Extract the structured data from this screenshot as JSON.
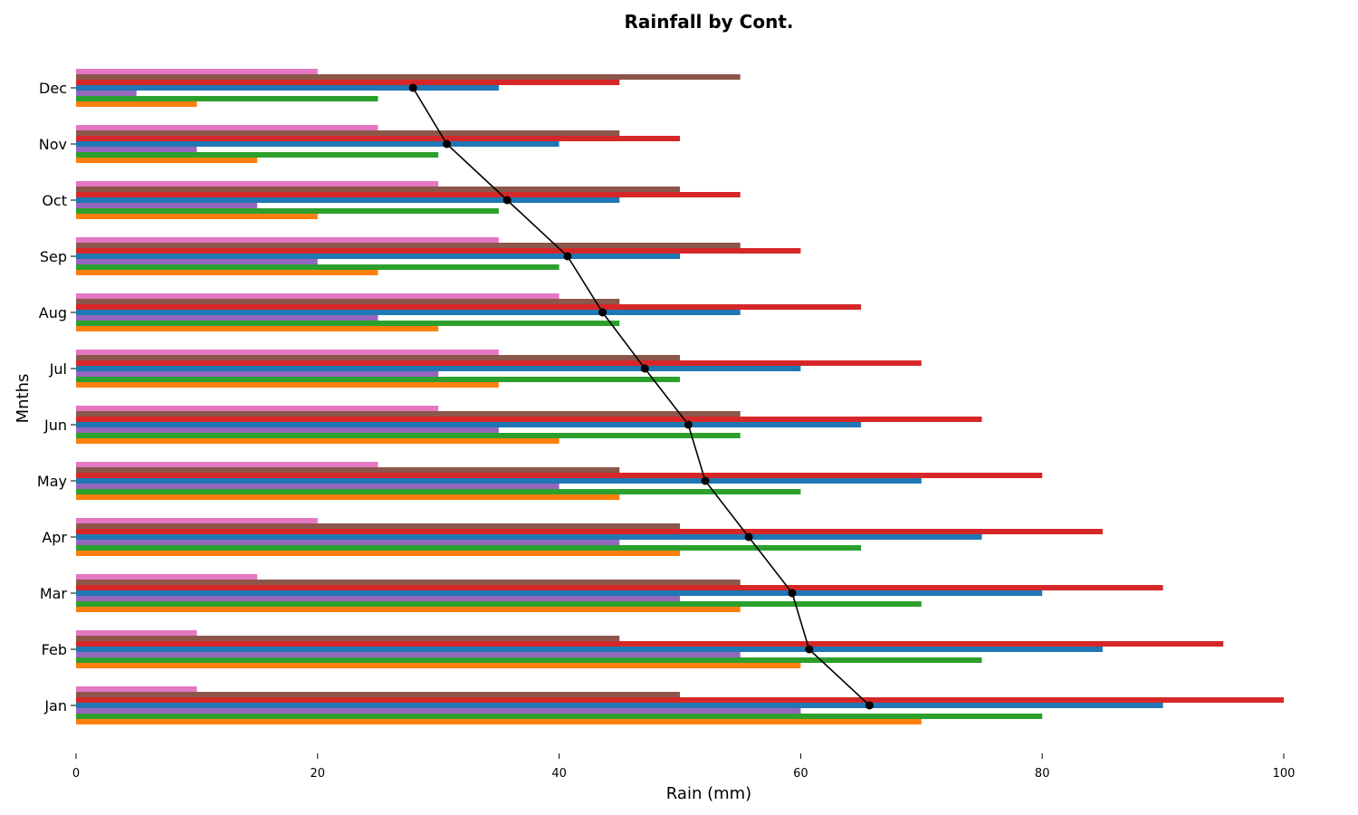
{
  "chart_data": {
    "type": "bar",
    "orientation": "horizontal",
    "title": "Rainfall by Cont.",
    "xlabel": "Rain (mm)",
    "ylabel": "Mnths",
    "xlim": [
      0,
      105
    ],
    "xticks": [
      0,
      20,
      40,
      60,
      80,
      100
    ],
    "grid": false,
    "categories": [
      "Jan",
      "Feb",
      "Mar",
      "Apr",
      "May",
      "Jun",
      "Jul",
      "Aug",
      "Sep",
      "Oct",
      "Nov",
      "Dec"
    ],
    "series": [
      {
        "color": "#ff7f0e",
        "values": [
          70,
          60,
          55,
          50,
          45,
          40,
          35,
          30,
          25,
          20,
          15,
          10
        ]
      },
      {
        "color": "#2ca02c",
        "values": [
          80,
          75,
          70,
          65,
          60,
          55,
          50,
          45,
          40,
          35,
          30,
          25
        ]
      },
      {
        "color": "#9467bd",
        "values": [
          60,
          55,
          50,
          45,
          40,
          35,
          30,
          25,
          20,
          15,
          10,
          5
        ]
      },
      {
        "color": "#1f77b4",
        "values": [
          90,
          85,
          80,
          75,
          70,
          65,
          60,
          55,
          50,
          45,
          40,
          35
        ]
      },
      {
        "color": "#d62728",
        "values": [
          100,
          95,
          90,
          85,
          80,
          75,
          70,
          65,
          60,
          55,
          50,
          45
        ]
      },
      {
        "color": "#8c564b",
        "values": [
          50,
          45,
          55,
          50,
          45,
          55,
          50,
          45,
          55,
          50,
          45,
          55
        ]
      },
      {
        "color": "#e377c2",
        "values": [
          10,
          10,
          15,
          20,
          25,
          30,
          35,
          40,
          35,
          30,
          25,
          20
        ]
      }
    ],
    "line": {
      "color": "#000000",
      "marker": "circle",
      "values": [
        65.7,
        60.7,
        59.3,
        55.7,
        52.1,
        50.7,
        47.1,
        43.6,
        40.7,
        35.7,
        30.7,
        27.9
      ]
    }
  }
}
